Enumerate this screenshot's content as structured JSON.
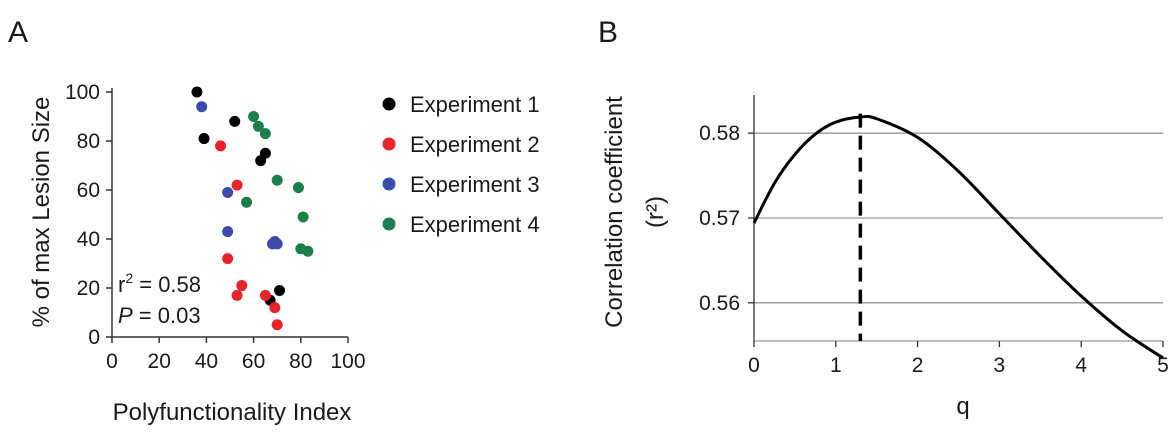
{
  "panels": {
    "a_label": "A",
    "b_label": "B"
  },
  "chart_data": [
    {
      "type": "scatter",
      "xlabel": "Polyfunctionality Index",
      "ylabel": "% of max Lesion Size",
      "xlim": [
        0,
        100
      ],
      "ylim": [
        0,
        100
      ],
      "x_ticks": [
        "0",
        "20",
        "40",
        "60",
        "80",
        "100"
      ],
      "y_ticks": [
        "0",
        "20",
        "40",
        "60",
        "80",
        "100"
      ],
      "grid": false,
      "legend_position": "right",
      "annotation": {
        "r2_prefix": "r",
        "r2_sup": "2",
        "r2_value": " = 0.58",
        "p_symbol": "P",
        "p_value": " = 0.03"
      },
      "series": [
        {
          "name": "Experiment 1",
          "color": "#000000",
          "points": [
            [
              36,
              100
            ],
            [
              39,
              81
            ],
            [
              52,
              88
            ],
            [
              63,
              72
            ],
            [
              65,
              75
            ],
            [
              67,
              15
            ],
            [
              71,
              19
            ]
          ]
        },
        {
          "name": "Experiment 2",
          "color": "#e8232b",
          "points": [
            [
              46,
              78
            ],
            [
              49,
              32
            ],
            [
              53,
              62
            ],
            [
              53,
              17
            ],
            [
              55,
              21
            ],
            [
              65,
              17
            ],
            [
              69,
              12
            ],
            [
              70,
              5
            ]
          ]
        },
        {
          "name": "Experiment 3",
          "color": "#3b4ba8",
          "points": [
            [
              38,
              94
            ],
            [
              49,
              59
            ],
            [
              49,
              43
            ],
            [
              68,
              38
            ],
            [
              69,
              39
            ],
            [
              70,
              38
            ]
          ]
        },
        {
          "name": "Experiment 4",
          "color": "#1a7f4a",
          "points": [
            [
              60,
              90
            ],
            [
              62,
              86
            ],
            [
              65,
              83
            ],
            [
              57,
              55
            ],
            [
              70,
              64
            ],
            [
              79,
              61
            ],
            [
              81,
              49
            ],
            [
              80,
              36
            ],
            [
              83,
              35
            ]
          ]
        }
      ]
    },
    {
      "type": "line",
      "xlabel": "q",
      "ylabel": "Correlation coefficient",
      "ylabel2": "(r²)",
      "xlim": [
        0,
        5
      ],
      "ylim": [
        0.5555,
        0.5845
      ],
      "x_ticks": [
        "0",
        "1",
        "2",
        "3",
        "4",
        "5"
      ],
      "y_ticks": [
        "0.56",
        "0.57",
        "0.58"
      ],
      "grid": true,
      "series": [
        {
          "color": "#000000",
          "x": [
            0,
            0.25,
            0.5,
            0.75,
            1.0,
            1.3,
            1.5,
            2.0,
            2.5,
            3.0,
            3.5,
            4.0,
            4.5,
            5.0
          ],
          "y": [
            0.5694,
            0.5741,
            0.5775,
            0.5799,
            0.5813,
            0.5819,
            0.5817,
            0.5795,
            0.5755,
            0.5705,
            0.5655,
            0.5608,
            0.5567,
            0.5535
          ]
        }
      ],
      "vline": {
        "x": 1.3,
        "style": "dashed"
      }
    }
  ]
}
